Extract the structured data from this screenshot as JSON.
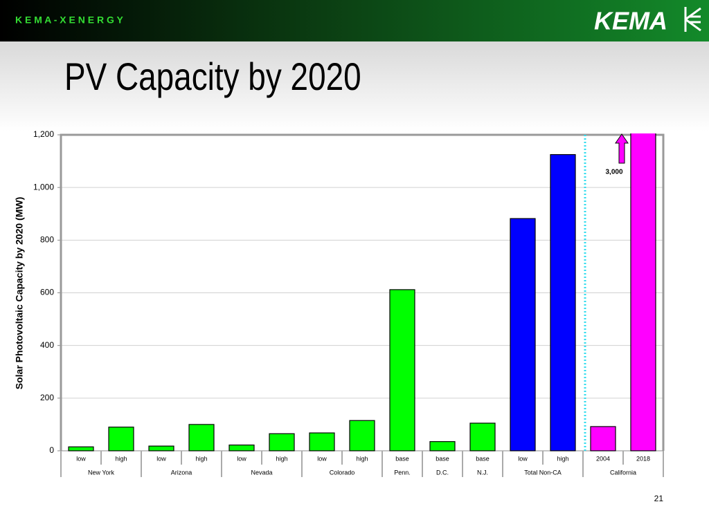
{
  "header": {
    "brand": "K E M A - X E N E R G Y",
    "logo": "KEMA"
  },
  "page_number": "21",
  "chart_data": {
    "type": "bar",
    "title": "PV Capacity by 2020",
    "y_label": "Solar Photovoltaic Capacity by 2020 (MW)",
    "categories": [
      "low",
      "high",
      "low",
      "high",
      "low",
      "high",
      "low",
      "high",
      "base",
      "base",
      "base",
      "low",
      "high",
      "2004",
      "2018"
    ],
    "group_of": [
      "New York",
      "New York",
      "Arizona",
      "Arizona",
      "Nevada",
      "Nevada",
      "Colorado",
      "Colorado",
      "Penn.",
      "D.C.",
      "N.J.",
      "Total Non-CA",
      "Total Non-CA",
      "California",
      "California"
    ],
    "values": [
      15,
      90,
      18,
      100,
      22,
      65,
      68,
      115,
      612,
      35,
      105,
      882,
      1125,
      92,
      3000
    ],
    "value_labels": [
      null,
      null,
      null,
      null,
      null,
      null,
      null,
      null,
      null,
      null,
      null,
      null,
      null,
      null,
      "3,000"
    ],
    "colors": [
      "#00ff00",
      "#00ff00",
      "#00ff00",
      "#00ff00",
      "#00ff00",
      "#00ff00",
      "#00ff00",
      "#00ff00",
      "#00ff00",
      "#00ff00",
      "#00ff00",
      "#0000ff",
      "#0000ff",
      "#ff00ff",
      "#ff00ff"
    ],
    "ylim": [
      0,
      1200
    ],
    "yticks": [
      0,
      200,
      400,
      600,
      800,
      {
        "value": 1000,
        "label": "1,000"
      },
      {
        "value": 1200,
        "label": "1,200"
      }
    ],
    "grid": true
  }
}
